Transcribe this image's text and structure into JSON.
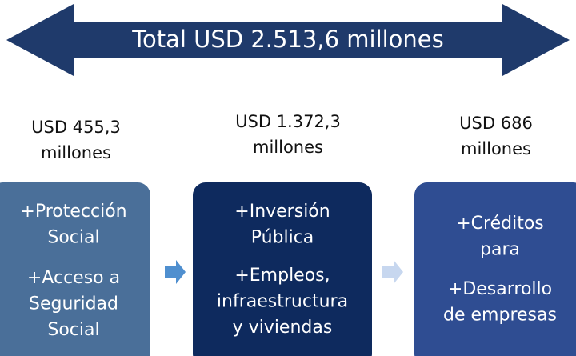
{
  "header": {
    "total": "Total USD 2.513,6 millones"
  },
  "columns": [
    {
      "amount": [
        "USD 455,3",
        "millones"
      ],
      "items": [
        [
          "+Protección",
          "Social"
        ],
        [
          "+Acceso a",
          "Seguridad",
          "Social"
        ]
      ]
    },
    {
      "amount": [
        "USD 1.372,3",
        "millones"
      ],
      "items": [
        [
          "+Inversión",
          "Pública"
        ],
        [
          "+Empleos,",
          "infraestructura",
          "y viviendas"
        ]
      ]
    },
    {
      "amount": [
        "USD 686",
        "millones"
      ],
      "items": [
        [
          "+Créditos",
          "para"
        ],
        [
          "+Desarrollo",
          "de empresas"
        ]
      ]
    }
  ]
}
